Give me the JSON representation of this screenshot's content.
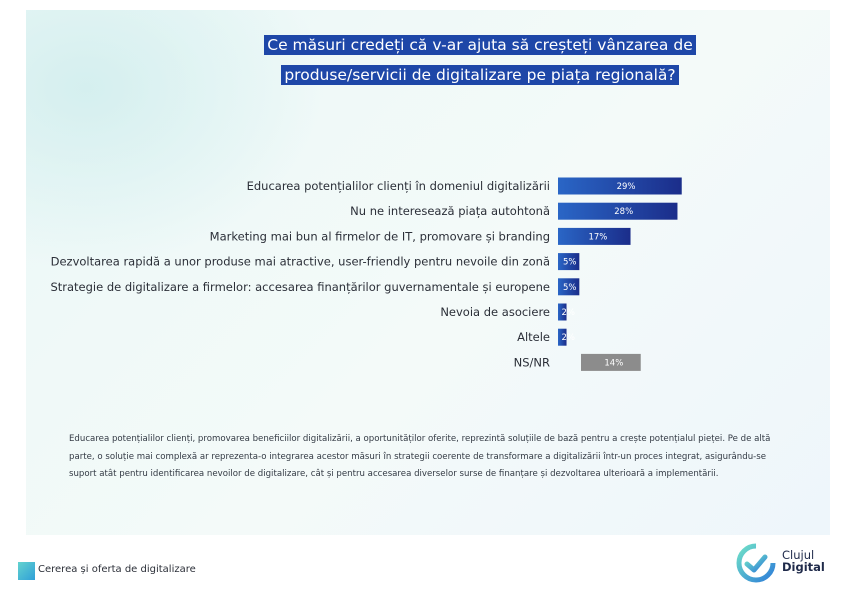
{
  "title_lines": [
    "Ce măsuri credeți că v-ar ajuta să creșteți vânzarea de",
    "produse/servicii de digitalizare pe piața regională?"
  ],
  "chart_data": {
    "type": "bar",
    "orientation": "horizontal",
    "categories": [
      "Educarea potențialilor clienți în domeniul digitalizării",
      "Nu ne interesează piața autohtonă",
      "Marketing mai bun al firmelor de IT, promovare și branding",
      "Dezvoltarea rapidă a unor produse mai atractive, user-friendly pentru nevoile din zonă",
      "Strategie de digitalizare a firmelor: accesarea finanțărilor guvernamentale și europene",
      "Nevoia de asociere",
      "Altele",
      "NS/NR"
    ],
    "values": [
      29,
      28,
      17,
      5,
      5,
      2,
      2,
      14
    ],
    "value_labels": [
      "29%",
      "28%",
      "17%",
      "5%",
      "5%",
      "2%",
      "2%",
      "14%"
    ],
    "unit": "%",
    "xlim": [
      0,
      30
    ],
    "colors": {
      "bar_start": "#2a66c6",
      "bar_end": "#1b2d8a",
      "bar_na": "#8c8c8c",
      "label_text": "#ffffff",
      "category_text": "#2b2f38"
    }
  },
  "note": "Educarea potențialilor clienți, promovarea beneficiilor digitalizării, a oportunităților oferite, reprezintă soluțiile de bază pentru a crește potențialul pieței. Pe de altă parte, o soluție mai complexă ar reprezenta-o integrarea acestor măsuri în strategii coerente de transformare a digitalizării într-un proces integrat, asigurându-se suport atât pentru identificarea nevoilor de digitalizare, cât și pentru accesarea diverselor surse de finanțare și dezvoltarea ulterioară a implementării.",
  "footer": {
    "label": "Cererea și oferta de digitalizare"
  },
  "logo": {
    "line1": "Clujul",
    "line2": "Digital",
    "icon": "cluj-digital-logo-icon"
  }
}
